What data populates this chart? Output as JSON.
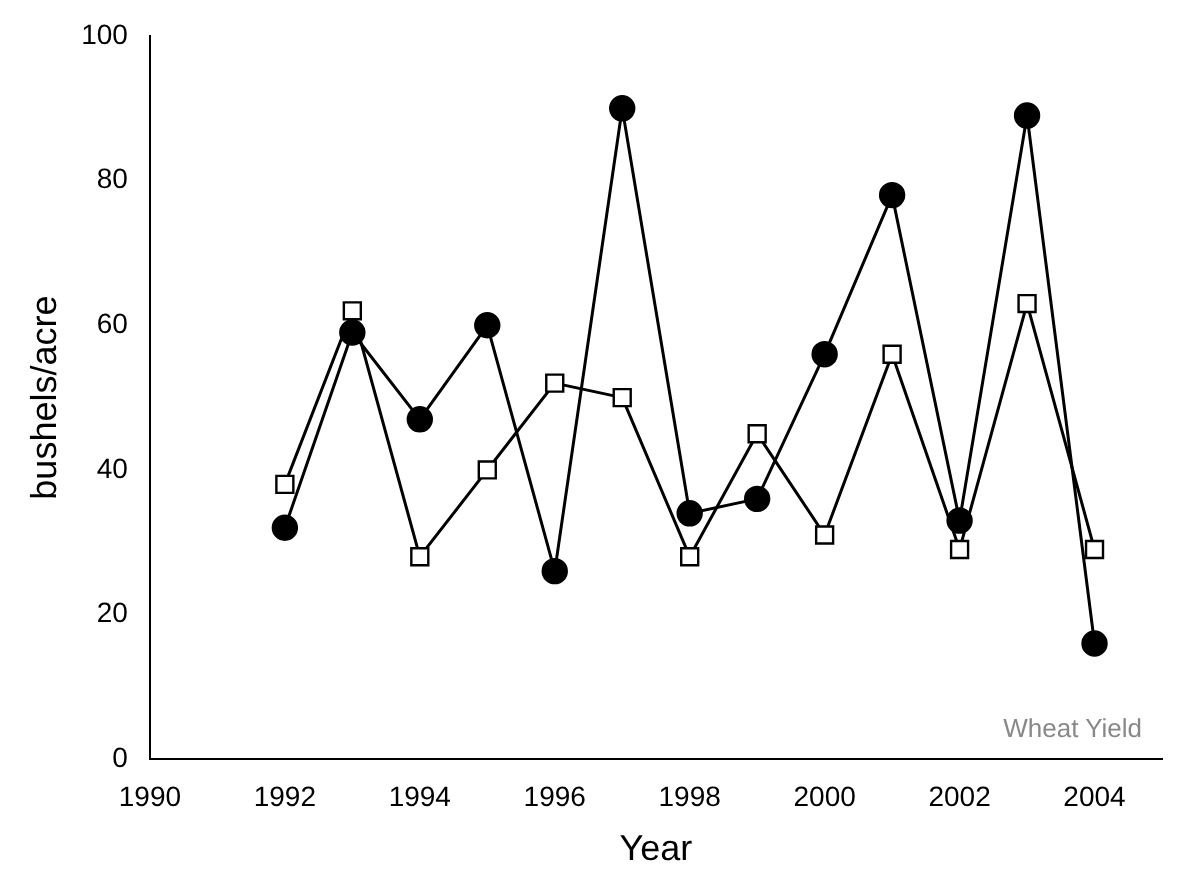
{
  "chart_data": {
    "type": "line",
    "xlabel": "Year",
    "ylabel": "bushels/acre",
    "x": [
      1992,
      1993,
      1994,
      1995,
      1996,
      1997,
      1998,
      1999,
      2000,
      2001,
      2002,
      2003,
      2004
    ],
    "xlim": [
      1990,
      2005
    ],
    "xticks": [
      1990,
      1992,
      1994,
      1996,
      1998,
      2000,
      2002,
      2004
    ],
    "ylim": [
      0,
      100
    ],
    "yticks": [
      0,
      20,
      40,
      60,
      80,
      100
    ],
    "grid": false,
    "legend": false,
    "line_style": "solid",
    "series": [
      {
        "color": "#000000",
        "marker": "circle",
        "values": [
          32,
          59,
          47,
          60,
          26,
          90,
          34,
          36,
          56,
          78,
          33,
          89,
          16
        ]
      },
      {
        "color": "#000000",
        "marker": "square",
        "values": [
          38,
          62,
          28,
          40,
          52,
          50,
          28,
          45,
          31,
          56,
          29,
          63,
          29
        ]
      }
    ],
    "annotations": [
      "Wheat Yield"
    ]
  }
}
